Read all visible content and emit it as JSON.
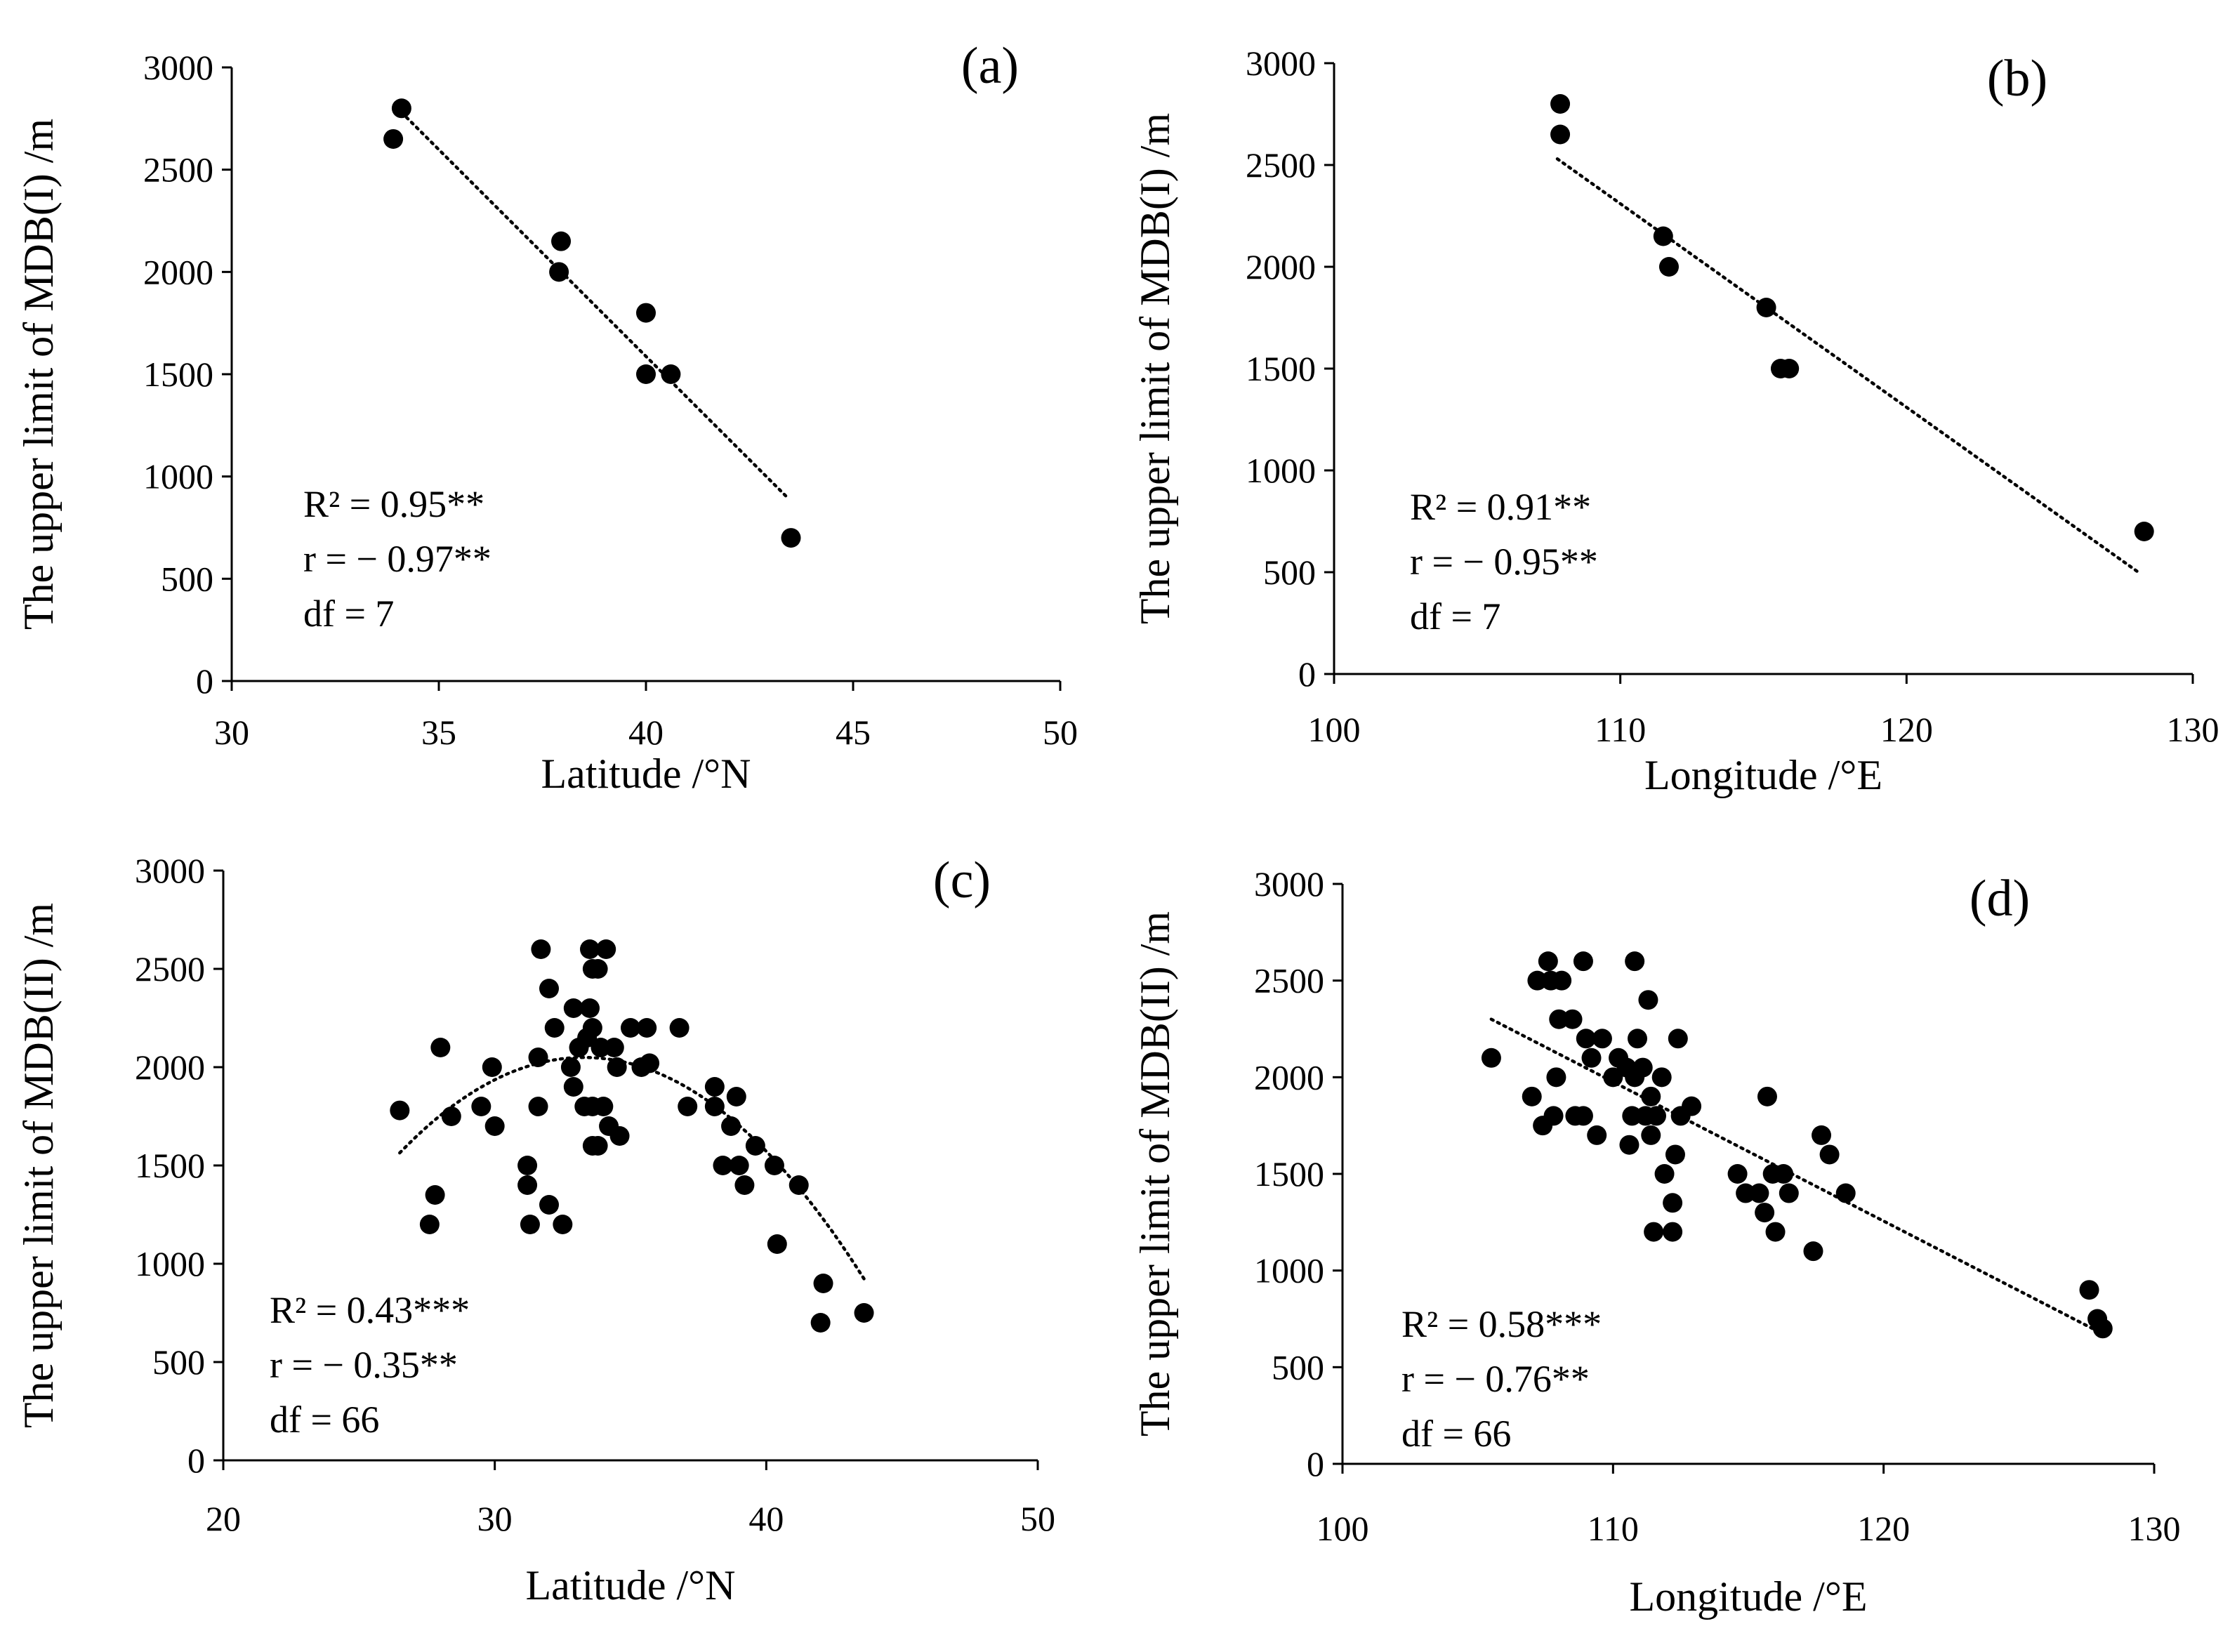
{
  "chart_data": [
    {
      "id": "a",
      "type": "scatter",
      "panel_label": "(a)",
      "xlabel": "Latitude /°N",
      "ylabel": "The upper limit of  MDB(I) /m",
      "xlim": [
        30,
        50
      ],
      "ylim": [
        0,
        3000
      ],
      "xticks": [
        30,
        35,
        40,
        45,
        50
      ],
      "yticks": [
        0,
        500,
        1000,
        1500,
        2000,
        2500,
        3000
      ],
      "grid": false,
      "points": [
        {
          "x": 33.9,
          "y": 2650
        },
        {
          "x": 34.1,
          "y": 2800
        },
        {
          "x": 37.9,
          "y": 2000
        },
        {
          "x": 37.95,
          "y": 2150
        },
        {
          "x": 40.0,
          "y": 1800
        },
        {
          "x": 40.0,
          "y": 1500
        },
        {
          "x": 40.6,
          "y": 1500
        },
        {
          "x": 43.5,
          "y": 700
        }
      ],
      "trend": {
        "kind": "linear",
        "points": [
          [
            34.1,
            2780
          ],
          [
            43.4,
            900
          ]
        ]
      },
      "stats": [
        "R² = 0.95**",
        "r = − 0.97**",
        "df = 7"
      ]
    },
    {
      "id": "b",
      "type": "scatter",
      "panel_label": "(b)",
      "xlabel": "Longitude /°E",
      "ylabel": "The upper limit of MDB(I) /m",
      "xlim": [
        100,
        130
      ],
      "ylim": [
        0,
        3000
      ],
      "xticks": [
        100,
        110,
        120,
        130
      ],
      "yticks": [
        0,
        500,
        1000,
        1500,
        2000,
        2500,
        3000
      ],
      "grid": false,
      "points": [
        {
          "x": 107.9,
          "y": 2800
        },
        {
          "x": 107.9,
          "y": 2650
        },
        {
          "x": 111.5,
          "y": 2150
        },
        {
          "x": 111.7,
          "y": 2000
        },
        {
          "x": 115.1,
          "y": 1800
        },
        {
          "x": 115.6,
          "y": 1500
        },
        {
          "x": 115.9,
          "y": 1500
        },
        {
          "x": 128.3,
          "y": 700
        }
      ],
      "trend": {
        "kind": "linear",
        "points": [
          [
            107.8,
            2530
          ],
          [
            128.1,
            500
          ]
        ]
      },
      "stats": [
        "R² = 0.91**",
        "r = − 0.95**",
        "df = 7"
      ]
    },
    {
      "id": "c",
      "type": "scatter",
      "panel_label": "(c)",
      "xlabel": "Latitude /°N",
      "ylabel": "The upper limit of MDB(II) /m",
      "xlim": [
        20,
        50
      ],
      "ylim": [
        0,
        3000
      ],
      "xticks": [
        20,
        30,
        40,
        50
      ],
      "yticks": [
        0,
        500,
        1000,
        1500,
        2000,
        2500,
        3000
      ],
      "grid": false,
      "points": [
        {
          "x": 26.5,
          "y": 1780
        },
        {
          "x": 27.6,
          "y": 1200
        },
        {
          "x": 27.8,
          "y": 1350
        },
        {
          "x": 28.0,
          "y": 2100
        },
        {
          "x": 28.4,
          "y": 1750
        },
        {
          "x": 29.5,
          "y": 1800
        },
        {
          "x": 29.9,
          "y": 2000
        },
        {
          "x": 30.0,
          "y": 1700
        },
        {
          "x": 31.2,
          "y": 1500
        },
        {
          "x": 31.2,
          "y": 1400
        },
        {
          "x": 31.3,
          "y": 1200
        },
        {
          "x": 31.6,
          "y": 2050
        },
        {
          "x": 31.6,
          "y": 1800
        },
        {
          "x": 31.7,
          "y": 2600
        },
        {
          "x": 32.0,
          "y": 2400
        },
        {
          "x": 32.0,
          "y": 1300
        },
        {
          "x": 32.2,
          "y": 2200
        },
        {
          "x": 32.5,
          "y": 1200
        },
        {
          "x": 32.8,
          "y": 2000
        },
        {
          "x": 32.9,
          "y": 2300
        },
        {
          "x": 32.9,
          "y": 1900
        },
        {
          "x": 33.1,
          "y": 2100
        },
        {
          "x": 33.3,
          "y": 1800
        },
        {
          "x": 33.4,
          "y": 2150
        },
        {
          "x": 33.5,
          "y": 2600
        },
        {
          "x": 33.5,
          "y": 2300
        },
        {
          "x": 33.6,
          "y": 2500
        },
        {
          "x": 33.6,
          "y": 2200
        },
        {
          "x": 33.6,
          "y": 1800
        },
        {
          "x": 33.6,
          "y": 1600
        },
        {
          "x": 33.8,
          "y": 2500
        },
        {
          "x": 33.8,
          "y": 1600
        },
        {
          "x": 33.9,
          "y": 2100
        },
        {
          "x": 34.0,
          "y": 1800
        },
        {
          "x": 34.1,
          "y": 2600
        },
        {
          "x": 34.2,
          "y": 1700
        },
        {
          "x": 34.4,
          "y": 2100
        },
        {
          "x": 34.5,
          "y": 2000
        },
        {
          "x": 34.6,
          "y": 1650
        },
        {
          "x": 35.0,
          "y": 2200
        },
        {
          "x": 35.4,
          "y": 2000
        },
        {
          "x": 35.6,
          "y": 2200
        },
        {
          "x": 35.7,
          "y": 2020
        },
        {
          "x": 36.8,
          "y": 2200
        },
        {
          "x": 37.1,
          "y": 1800
        },
        {
          "x": 38.1,
          "y": 1900
        },
        {
          "x": 38.1,
          "y": 1800
        },
        {
          "x": 38.4,
          "y": 1500
        },
        {
          "x": 38.7,
          "y": 1700
        },
        {
          "x": 38.9,
          "y": 1850
        },
        {
          "x": 39.0,
          "y": 1500
        },
        {
          "x": 39.2,
          "y": 1400
        },
        {
          "x": 39.6,
          "y": 1600
        },
        {
          "x": 40.3,
          "y": 1500
        },
        {
          "x": 40.4,
          "y": 1100
        },
        {
          "x": 41.2,
          "y": 1400
        },
        {
          "x": 42.0,
          "y": 700
        },
        {
          "x": 42.1,
          "y": 900
        },
        {
          "x": 43.6,
          "y": 750
        }
      ],
      "trend": {
        "kind": "quadratic",
        "x_range": [
          26.5,
          43.6
        ],
        "coef": [
          -10.57,
          703.5,
          -9656
        ]
      },
      "stats": [
        "R² = 0.43***",
        "r = − 0.35**",
        "df = 66"
      ]
    },
    {
      "id": "d",
      "type": "scatter",
      "panel_label": "(d)",
      "xlabel": "Longitude /°E",
      "ylabel": "The upper limit of MDB(II) /m",
      "xlim": [
        100,
        130
      ],
      "ylim": [
        0,
        3000
      ],
      "xticks": [
        100,
        110,
        120,
        130
      ],
      "yticks": [
        0,
        500,
        1000,
        1500,
        2000,
        2500,
        3000
      ],
      "grid": false,
      "points": [
        {
          "x": 105.5,
          "y": 2100
        },
        {
          "x": 107.0,
          "y": 1900
        },
        {
          "x": 107.2,
          "y": 2500
        },
        {
          "x": 107.4,
          "y": 1750
        },
        {
          "x": 107.6,
          "y": 2600
        },
        {
          "x": 107.7,
          "y": 2500
        },
        {
          "x": 107.8,
          "y": 1800
        },
        {
          "x": 107.9,
          "y": 2000
        },
        {
          "x": 108.0,
          "y": 2300
        },
        {
          "x": 108.1,
          "y": 2500
        },
        {
          "x": 108.5,
          "y": 2300
        },
        {
          "x": 108.6,
          "y": 1800
        },
        {
          "x": 108.9,
          "y": 1800
        },
        {
          "x": 108.9,
          "y": 2600
        },
        {
          "x": 109.0,
          "y": 2200
        },
        {
          "x": 109.2,
          "y": 2100
        },
        {
          "x": 109.4,
          "y": 1700
        },
        {
          "x": 109.6,
          "y": 2200
        },
        {
          "x": 110.0,
          "y": 2000
        },
        {
          "x": 110.2,
          "y": 2100
        },
        {
          "x": 110.5,
          "y": 2050
        },
        {
          "x": 110.6,
          "y": 1650
        },
        {
          "x": 110.7,
          "y": 1800
        },
        {
          "x": 110.8,
          "y": 2600
        },
        {
          "x": 110.8,
          "y": 2000
        },
        {
          "x": 110.9,
          "y": 2200
        },
        {
          "x": 111.1,
          "y": 2050
        },
        {
          "x": 111.2,
          "y": 1800
        },
        {
          "x": 111.3,
          "y": 2400
        },
        {
          "x": 111.4,
          "y": 1900
        },
        {
          "x": 111.4,
          "y": 1700
        },
        {
          "x": 111.5,
          "y": 1200
        },
        {
          "x": 111.6,
          "y": 1800
        },
        {
          "x": 111.8,
          "y": 2000
        },
        {
          "x": 111.9,
          "y": 1500
        },
        {
          "x": 112.2,
          "y": 1350
        },
        {
          "x": 112.2,
          "y": 1200
        },
        {
          "x": 112.3,
          "y": 1600
        },
        {
          "x": 112.4,
          "y": 2200
        },
        {
          "x": 112.5,
          "y": 1800
        },
        {
          "x": 112.9,
          "y": 1850
        },
        {
          "x": 114.6,
          "y": 1500
        },
        {
          "x": 114.9,
          "y": 1400
        },
        {
          "x": 115.4,
          "y": 1400
        },
        {
          "x": 115.6,
          "y": 1300
        },
        {
          "x": 115.7,
          "y": 1900
        },
        {
          "x": 115.9,
          "y": 1500
        },
        {
          "x": 116.0,
          "y": 1200
        },
        {
          "x": 116.3,
          "y": 1500
        },
        {
          "x": 116.5,
          "y": 1400
        },
        {
          "x": 117.4,
          "y": 1100
        },
        {
          "x": 117.7,
          "y": 1700
        },
        {
          "x": 118.0,
          "y": 1600
        },
        {
          "x": 118.6,
          "y": 1400
        },
        {
          "x": 127.6,
          "y": 900
        },
        {
          "x": 127.9,
          "y": 750
        },
        {
          "x": 128.1,
          "y": 700
        }
      ],
      "trend": {
        "kind": "linear",
        "points": [
          [
            105.5,
            2300
          ],
          [
            128.0,
            680
          ]
        ]
      },
      "stats": [
        "R² = 0.58***",
        "r = − 0.76**",
        "df = 66"
      ]
    }
  ]
}
